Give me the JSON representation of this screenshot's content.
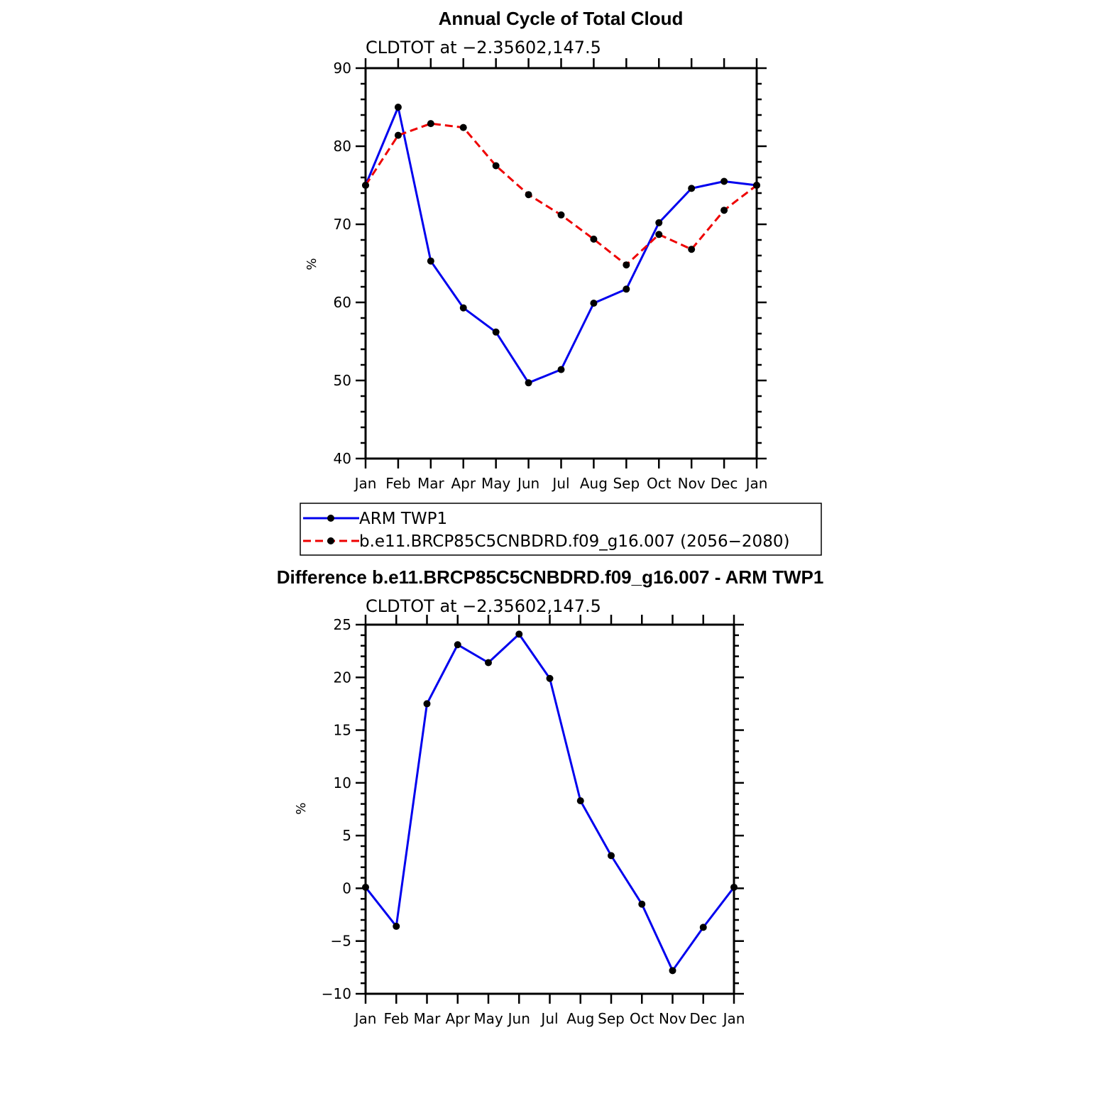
{
  "chart_data": [
    {
      "type": "line",
      "title": "Annual Cycle of Total Cloud",
      "subtitle": "CLDTOT at −2.35602,147.5",
      "ylabel": "%",
      "ylim": [
        40,
        90
      ],
      "yticks": [
        "90",
        "80",
        "70",
        "60",
        "50",
        "40"
      ],
      "ytick_values": [
        90,
        80,
        70,
        60,
        50,
        40
      ],
      "categories": [
        "Jan",
        "Feb",
        "Mar",
        "Apr",
        "May",
        "Jun",
        "Jul",
        "Aug",
        "Sep",
        "Oct",
        "Nov",
        "Dec",
        "Jan"
      ],
      "series": [
        {
          "name": "ARM TWP1",
          "color": "#0000ee",
          "dashed": false,
          "values": [
            75.0,
            85.0,
            65.3,
            59.3,
            56.2,
            49.7,
            51.4,
            59.9,
            61.7,
            70.2,
            74.6,
            75.5,
            75.0
          ]
        },
        {
          "name": "b.e11.BRCP85C5CNBDRD.f09_g16.007 (2056−2080)",
          "color": "#ee0000",
          "dashed": true,
          "values": [
            75.0,
            81.4,
            82.9,
            82.4,
            77.5,
            73.8,
            71.2,
            68.1,
            64.8,
            68.7,
            66.8,
            71.8,
            75.0
          ]
        }
      ],
      "legend": "bottom"
    },
    {
      "type": "line",
      "title": "Difference b.e11.BRCP85C5CNBDRD.f09_g16.007 - ARM TWP1",
      "subtitle": "CLDTOT at −2.35602,147.5",
      "ylabel": "%",
      "ylim": [
        -10,
        25
      ],
      "yticks": [
        "25",
        "20",
        "15",
        "10",
        "5",
        "0",
        "−5",
        "−10"
      ],
      "ytick_values": [
        25,
        20,
        15,
        10,
        5,
        0,
        -5,
        -10
      ],
      "categories": [
        "Jan",
        "Feb",
        "Mar",
        "Apr",
        "May",
        "Jun",
        "Jul",
        "Aug",
        "Sep",
        "Oct",
        "Nov",
        "Dec",
        "Jan"
      ],
      "series": [
        {
          "color": "#0000ee",
          "dashed": false,
          "values": [
            0.1,
            -3.6,
            17.5,
            23.1,
            21.4,
            24.1,
            19.9,
            8.3,
            3.1,
            -1.5,
            -7.8,
            -3.7,
            0.1
          ]
        }
      ]
    }
  ]
}
